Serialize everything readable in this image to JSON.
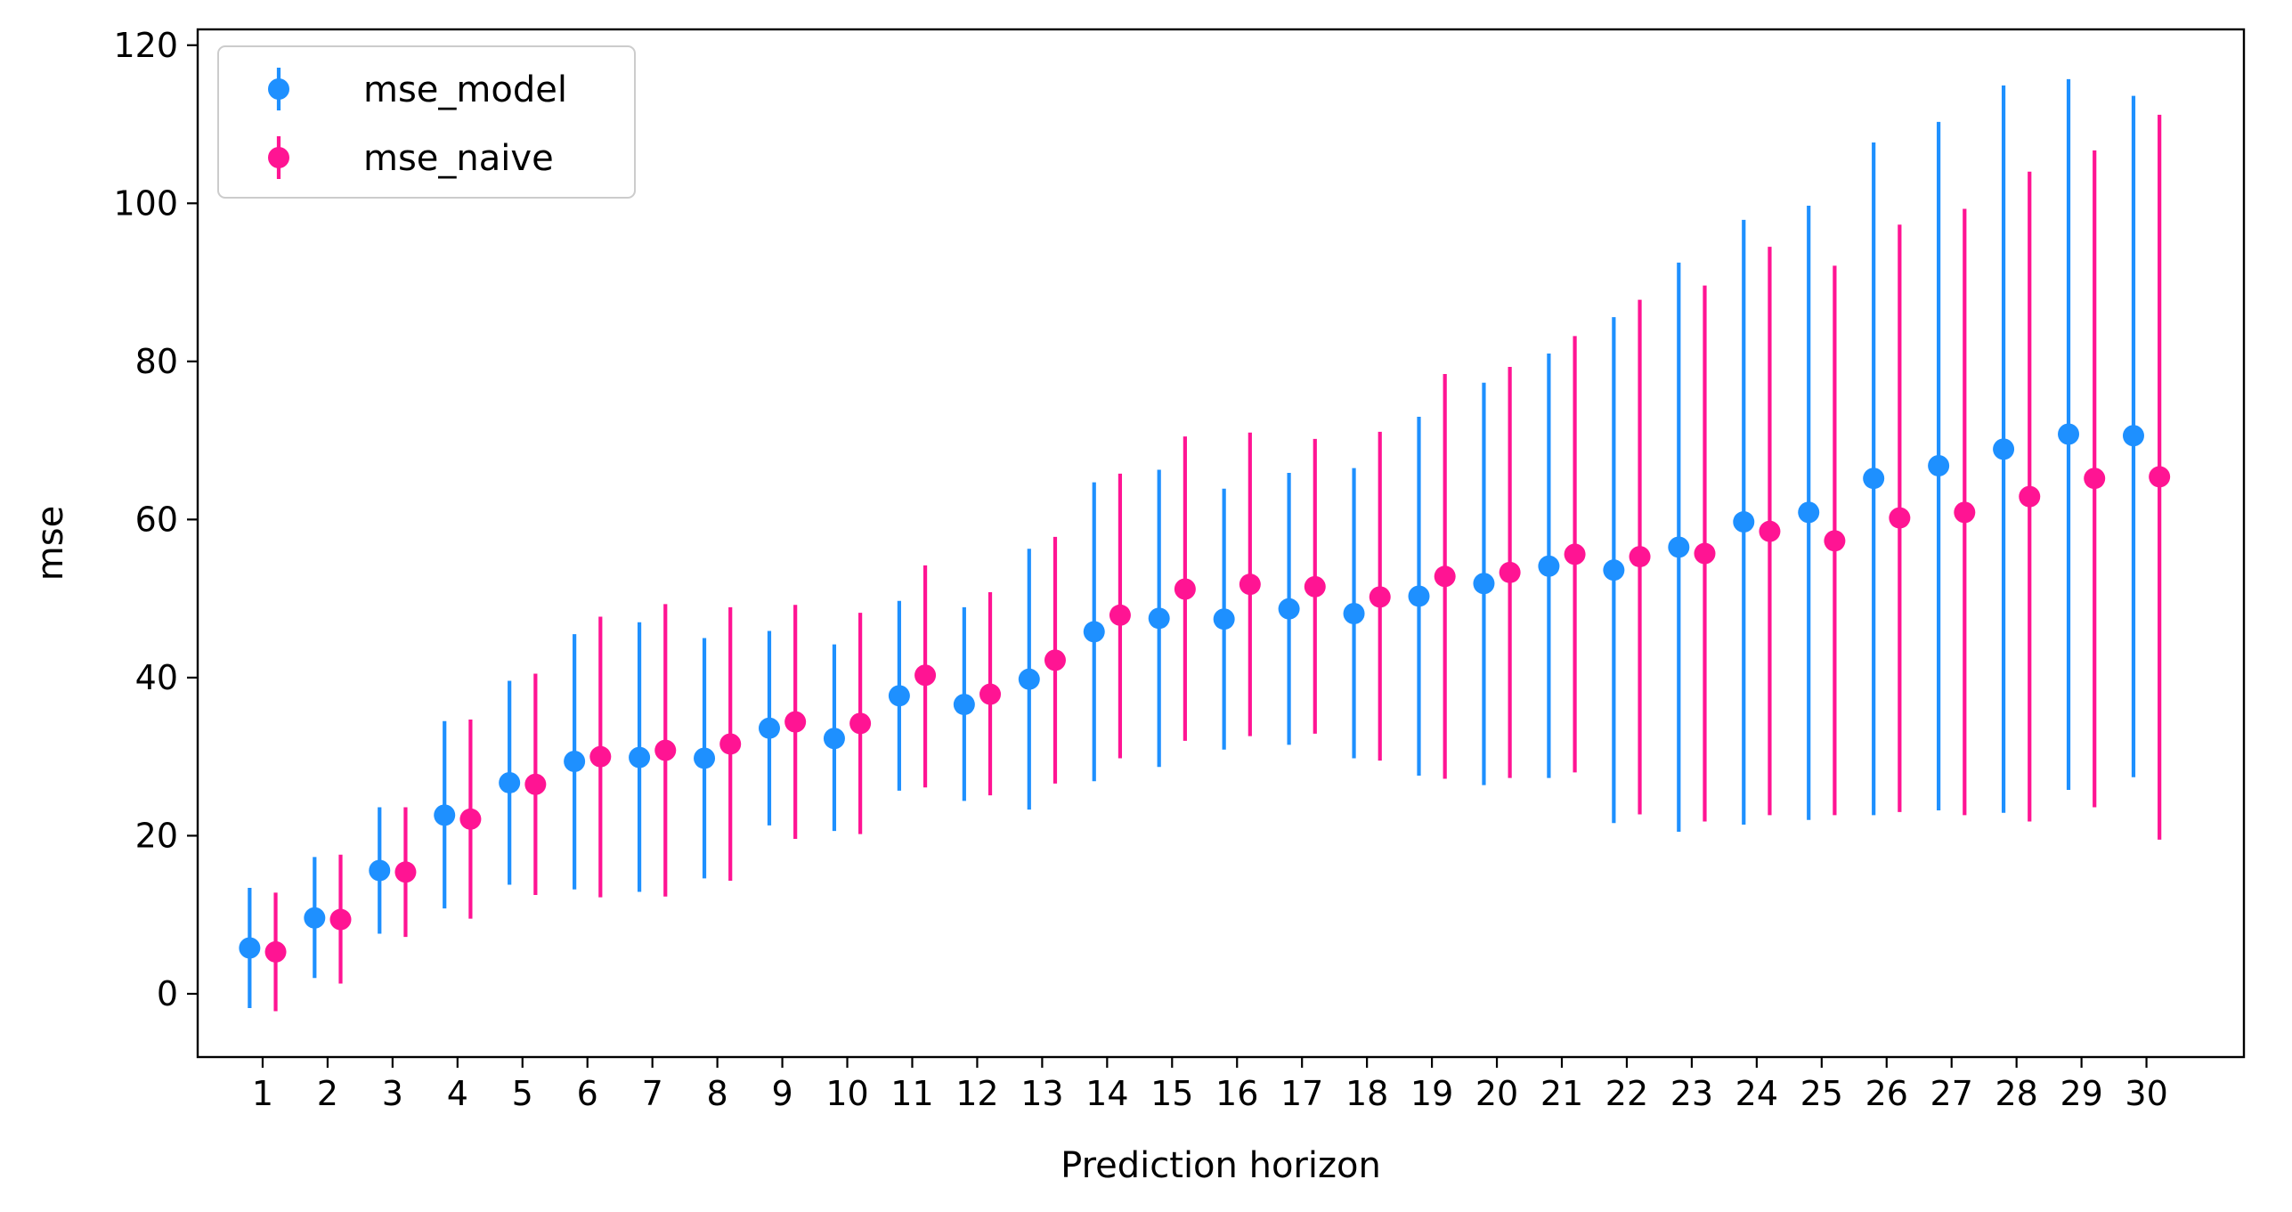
{
  "chart_data": {
    "type": "scatter",
    "title": "",
    "xlabel": "Prediction horizon",
    "ylabel": "mse",
    "x": [
      1,
      2,
      3,
      4,
      5,
      6,
      7,
      8,
      9,
      10,
      11,
      12,
      13,
      14,
      15,
      16,
      17,
      18,
      19,
      20,
      21,
      22,
      23,
      24,
      25,
      26,
      27,
      28,
      29,
      30
    ],
    "xticks": [
      "1",
      "2",
      "3",
      "4",
      "5",
      "6",
      "7",
      "8",
      "9",
      "10",
      "11",
      "12",
      "13",
      "14",
      "15",
      "16",
      "17",
      "18",
      "19",
      "20",
      "21",
      "22",
      "23",
      "24",
      "25",
      "26",
      "27",
      "28",
      "29",
      "30"
    ],
    "ylim": [
      -8,
      122
    ],
    "yticks": [
      "0",
      "20",
      "40",
      "60",
      "80",
      "100",
      "120"
    ],
    "legend_position": "top-left",
    "grid": false,
    "series": [
      {
        "name": "mse_model",
        "color": "#1E90FF",
        "values": [
          5.8,
          9.6,
          15.6,
          22.6,
          26.7,
          29.4,
          29.9,
          29.8,
          33.6,
          32.3,
          37.7,
          36.6,
          39.8,
          45.8,
          47.5,
          47.4,
          48.7,
          48.1,
          50.3,
          51.9,
          54.1,
          53.6,
          56.5,
          59.7,
          60.9,
          65.2,
          66.8,
          68.9,
          70.8,
          70.6
        ],
        "err_low": [
          -1.8,
          2.0,
          7.6,
          10.8,
          13.8,
          13.2,
          12.9,
          14.6,
          21.3,
          20.6,
          25.7,
          24.4,
          23.3,
          26.9,
          28.7,
          30.9,
          31.5,
          29.8,
          27.6,
          26.4,
          27.3,
          21.6,
          20.5,
          21.4,
          22.0,
          22.6,
          23.2,
          22.9,
          25.8,
          27.4
        ],
        "err_high": [
          13.4,
          17.3,
          23.6,
          34.5,
          39.6,
          45.5,
          47.0,
          45.0,
          45.9,
          44.2,
          49.7,
          48.9,
          56.3,
          64.7,
          66.3,
          63.9,
          65.9,
          66.5,
          73.0,
          77.3,
          81.0,
          85.6,
          92.5,
          97.9,
          99.7,
          107.7,
          110.3,
          114.9,
          115.7,
          113.6
        ]
      },
      {
        "name": "mse_naive",
        "color": "#FF1493",
        "values": [
          5.3,
          9.4,
          15.4,
          22.1,
          26.5,
          30.0,
          30.8,
          31.6,
          34.4,
          34.2,
          40.3,
          37.9,
          42.2,
          47.9,
          51.2,
          51.8,
          51.5,
          50.2,
          52.8,
          53.3,
          55.6,
          55.3,
          55.7,
          58.5,
          57.3,
          60.2,
          60.9,
          62.9,
          65.2,
          65.4
        ],
        "err_low": [
          -2.2,
          1.3,
          7.2,
          9.5,
          12.5,
          12.2,
          12.3,
          14.3,
          19.6,
          20.2,
          26.1,
          25.1,
          26.6,
          29.8,
          32.0,
          32.6,
          32.9,
          29.5,
          27.2,
          27.3,
          28.0,
          22.7,
          21.8,
          22.6,
          22.6,
          23.0,
          22.6,
          21.8,
          23.6,
          19.5
        ],
        "err_high": [
          12.8,
          17.6,
          23.6,
          34.7,
          40.5,
          47.7,
          49.3,
          48.9,
          49.2,
          48.2,
          54.2,
          50.8,
          57.8,
          65.8,
          70.5,
          71.0,
          70.2,
          71.1,
          78.4,
          79.3,
          83.2,
          87.8,
          89.6,
          94.5,
          92.1,
          97.3,
          99.3,
          104.0,
          106.7,
          111.2
        ]
      }
    ]
  }
}
